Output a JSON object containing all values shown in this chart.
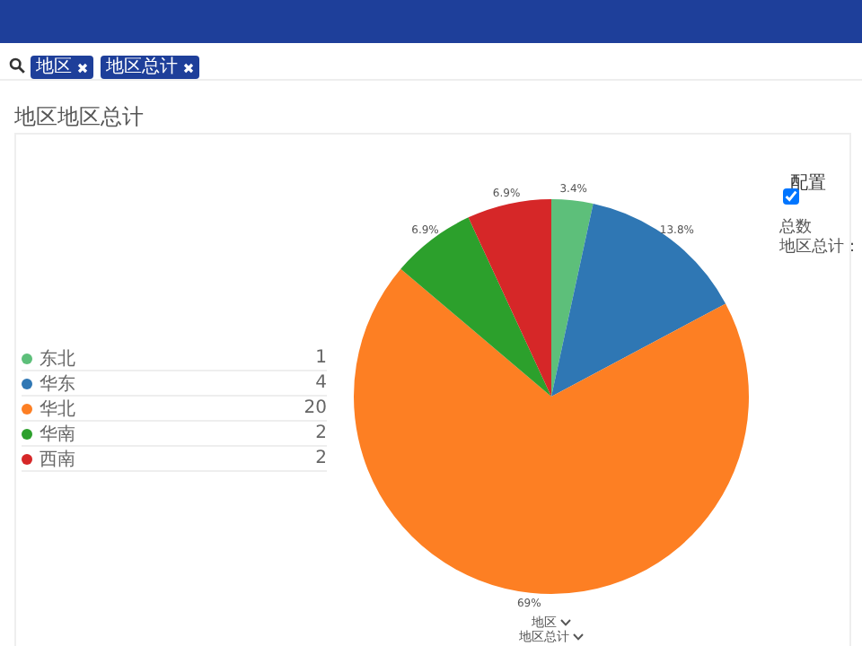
{
  "chart_data": {
    "type": "pie",
    "title": "地区地区总计",
    "categories": [
      "东北",
      "华东",
      "华北",
      "华南",
      "西南"
    ],
    "values": [
      3.4,
      13.8,
      69,
      6.9,
      6.9
    ],
    "colors": [
      "#5dbf7a",
      "#2f77b4",
      "#fd7f23",
      "#2ca02c",
      "#d62728"
    ],
    "value_labels": [
      "3.4%",
      "13.8%",
      "69%",
      "6.9%",
      "6.9%"
    ],
    "legend": "left",
    "annotations": [
      "地区",
      "地区总计",
      "配置",
      "总数",
      "地区总计：",
      "地区",
      "地区总计",
      "1",
      "4",
      "20",
      "2",
      "2"
    ]
  }
}
